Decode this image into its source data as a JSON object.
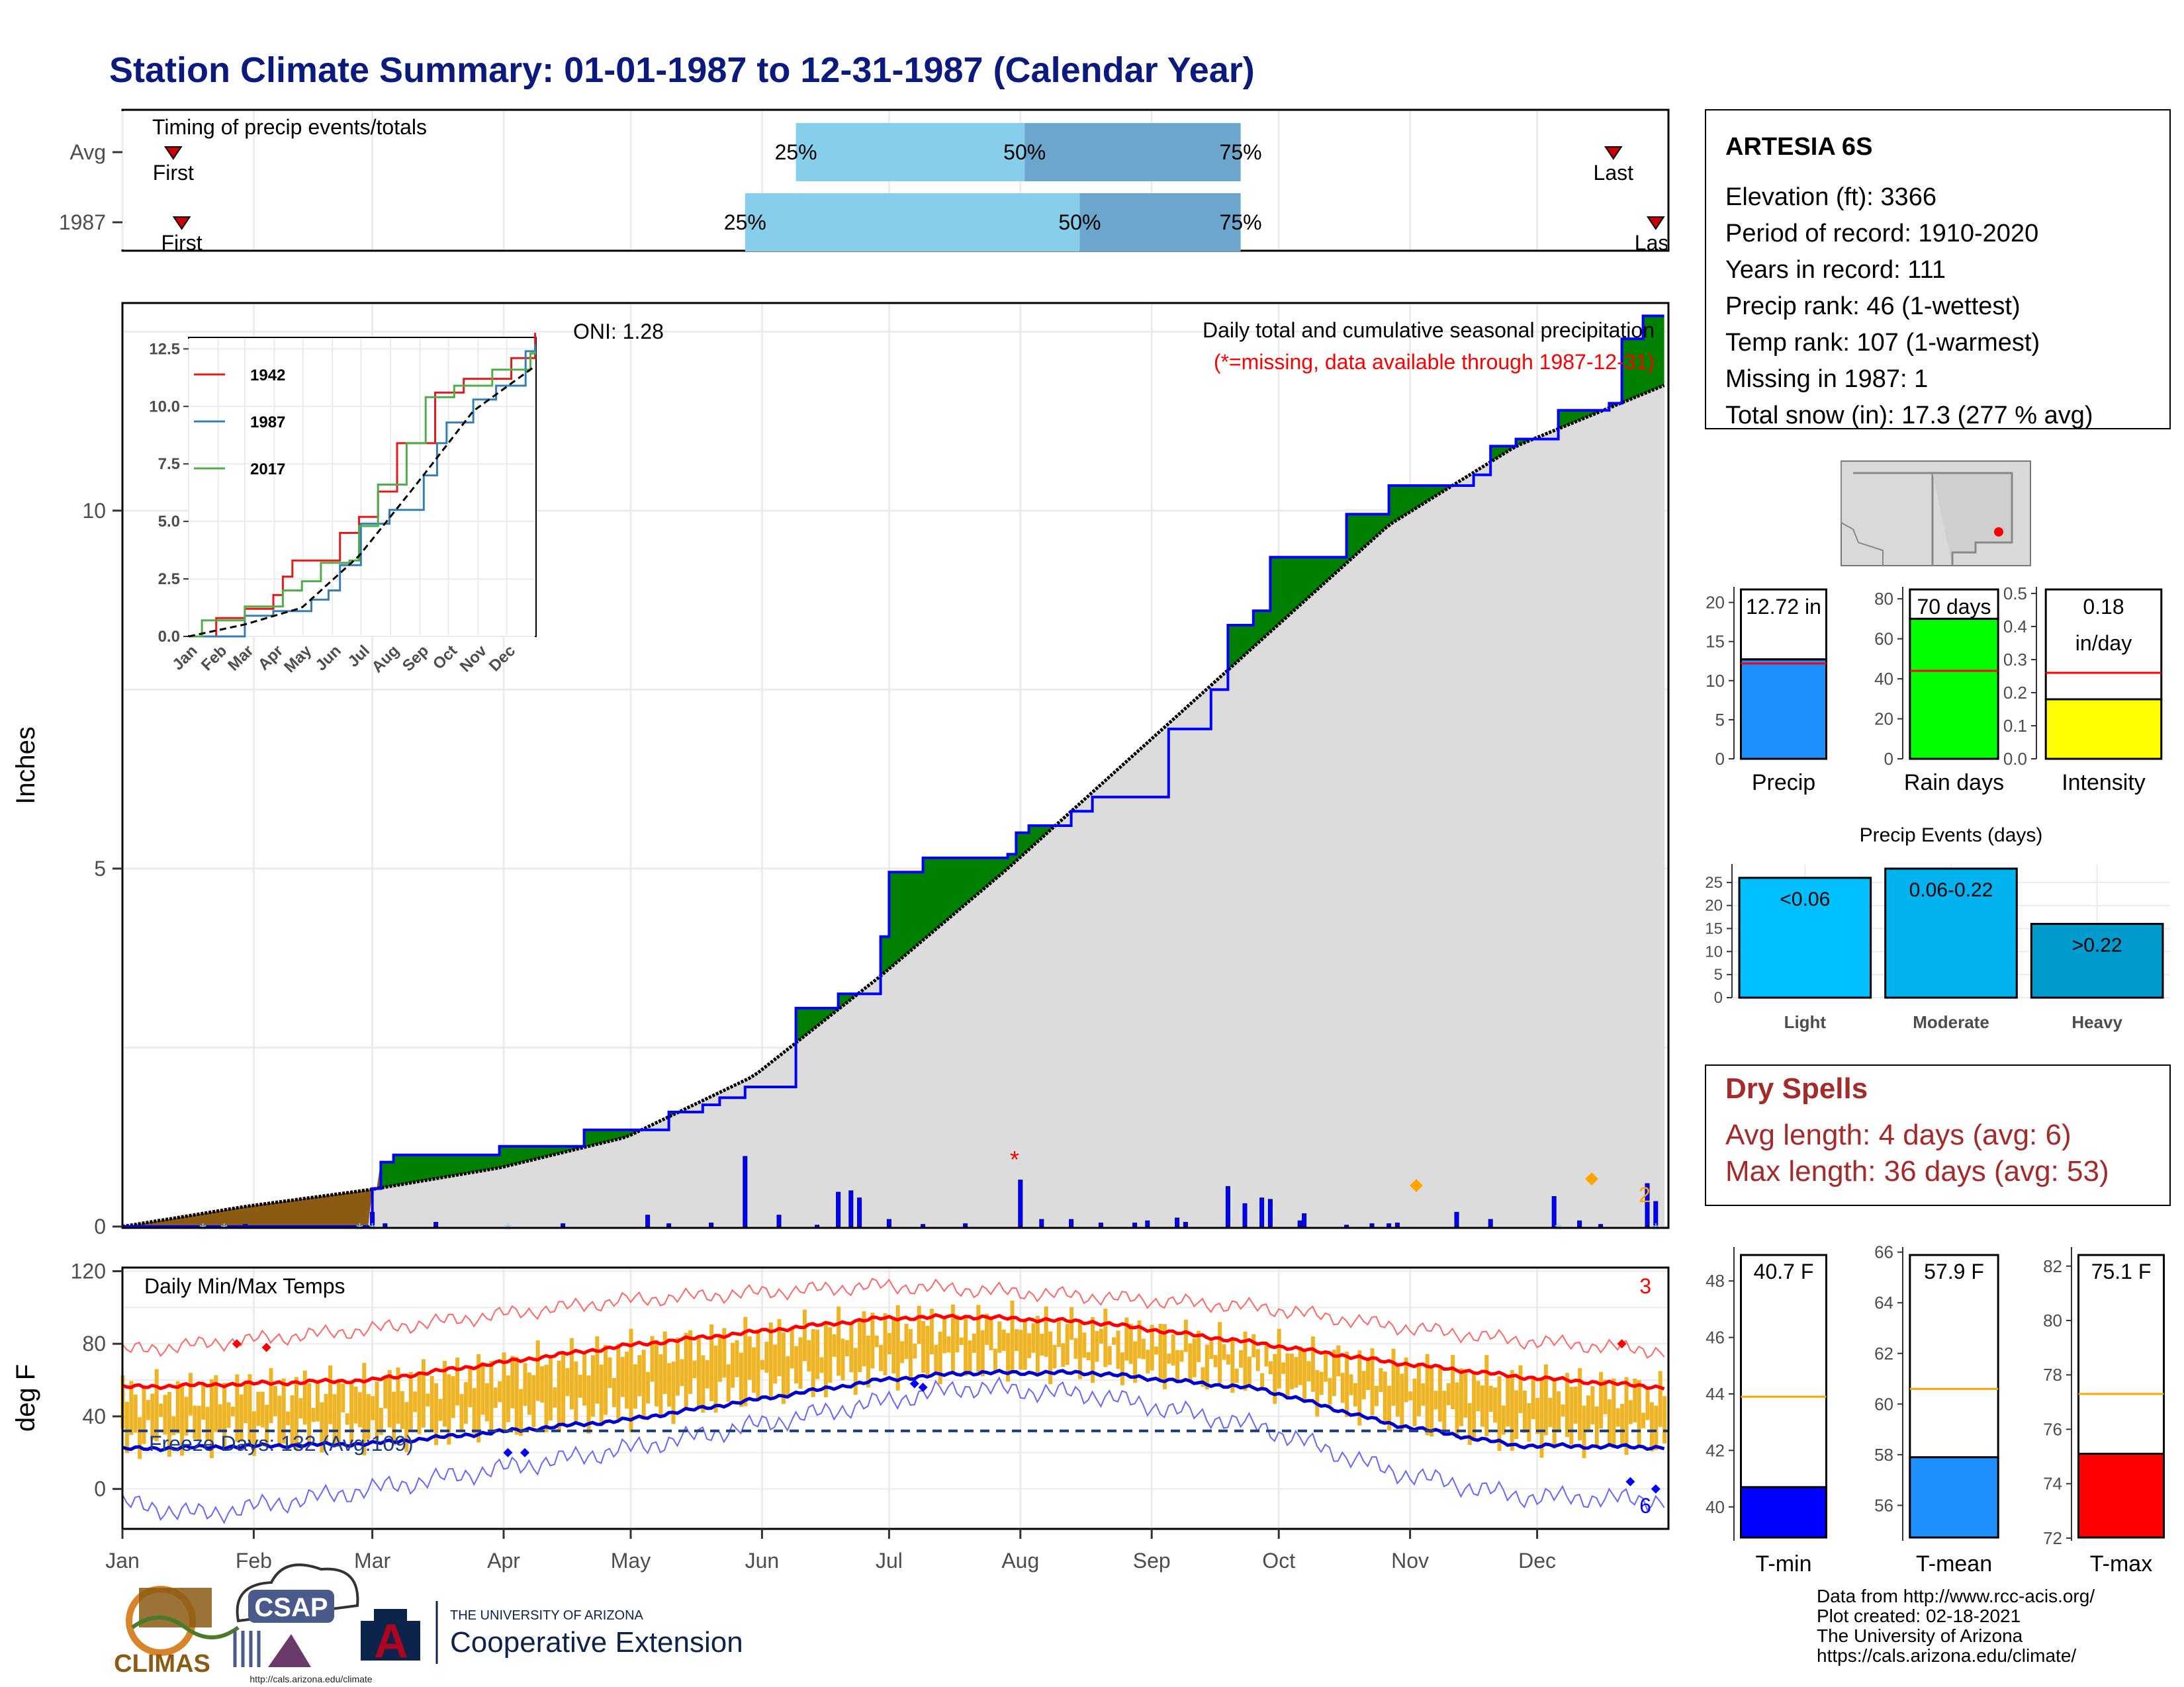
{
  "page_title": "Station Climate Summary: 01-01-1987 to 12-31-1987 (Calendar Year)",
  "colors": {
    "title": "#0b1a7d",
    "precip_obs_fill": "#008000",
    "precip_early_fill": "#8b5a13",
    "precip_avg_fill": "#dcdcdc",
    "daily_bar": "#0000ff",
    "temp_bar": "#efb424",
    "tmax_line": "#ff0000",
    "tmin_line": "#0000cc",
    "dry_spells_text": "#a52a2a",
    "timing_light": "#87ceeb",
    "timing_dark": "#6ca6cd"
  },
  "timing": {
    "title": "Timing of precip events/totals",
    "rows": [
      {
        "label": "Avg",
        "first_label": "First",
        "last_label": "Last",
        "first_day": 13,
        "last_day": 353,
        "q25_day": 160,
        "q50_day": 214,
        "q75_day": 265,
        "q25_label": "25%",
        "q50_label": "50%",
        "q75_label": "75%"
      },
      {
        "label": "1987",
        "first_label": "First",
        "last_label": "Last",
        "first_day": 15,
        "last_day": 363,
        "q25_day": 148,
        "q50_day": 227,
        "q75_day": 265,
        "q25_label": "25%",
        "q50_label": "50%",
        "q75_label": "75%"
      }
    ]
  },
  "station": {
    "name": "ARTESIA 6S",
    "lines": [
      "Elevation (ft): 3366",
      "Period of record: 1910-2020",
      "Years in record: 111",
      "Precip rank: 46 (1-wettest)",
      "Temp rank: 107 (1-warmest)",
      "Missing in 1987: 1",
      "Total snow (in): 17.3 (277 % avg)"
    ]
  },
  "main_panel": {
    "ylabel": "Inches",
    "y_ticks": [
      "0",
      "5",
      "10"
    ],
    "oni_label": "ONI: 1.28",
    "legend_title": "Daily total and cumulative seasonal precipitation",
    "legend_note": "(*=missing, data available through 1987-12-31)",
    "count_label": "2"
  },
  "temp_panel": {
    "ylabel": "deg F",
    "title": "Daily Min/Max Temps",
    "y_ticks": [
      "0",
      "40",
      "80",
      "120"
    ],
    "freeze_label": "Freeze Days: 132 (Avg:109)",
    "count_top": "3",
    "count_bottom": "6"
  },
  "months": [
    "Jan",
    "Feb",
    "Mar",
    "Apr",
    "May",
    "Jun",
    "Jul",
    "Aug",
    "Sep",
    "Oct",
    "Nov",
    "Dec"
  ],
  "inset": {
    "y_ticks": [
      "0.0",
      "2.5",
      "5.0",
      "7.5",
      "10.0",
      "12.5"
    ],
    "legend": [
      {
        "name": "1942",
        "color": "#e41a1c"
      },
      {
        "name": "1987",
        "color": "#377eb8"
      },
      {
        "name": "2017",
        "color": "#4daf4a"
      }
    ]
  },
  "mini_bars": [
    {
      "label": "Precip",
      "value_text": "12.72 in",
      "value": 12.72,
      "avg": 12.2,
      "ymax": 22,
      "ticks": [
        "0",
        "5",
        "10",
        "15",
        "20"
      ],
      "tick_vals": [
        0,
        5,
        10,
        15,
        20
      ],
      "color": "#1e90ff"
    },
    {
      "label": "Rain days",
      "value_text": "70 days",
      "value": 70,
      "avg": 44,
      "ymax": 86,
      "ticks": [
        "0",
        "20",
        "40",
        "60",
        "80"
      ],
      "tick_vals": [
        0,
        20,
        40,
        60,
        80
      ],
      "color": "#00ff00"
    },
    {
      "label": "Intensity",
      "value_text": "0.18",
      "value_text2": "in/day",
      "value": 0.18,
      "avg": 0.26,
      "ymax": 0.52,
      "ticks": [
        "0.0",
        "0.1",
        "0.2",
        "0.3",
        "0.4",
        "0.5"
      ],
      "tick_vals": [
        0,
        0.1,
        0.2,
        0.3,
        0.4,
        0.5
      ],
      "color": "#ffff00"
    }
  ],
  "events": {
    "title": "Precip Events (days)",
    "ticks": [
      "0",
      "5",
      "10",
      "15",
      "20",
      "25"
    ],
    "bars": [
      {
        "label": "Light",
        "range": "<0.06",
        "value": 26,
        "color": "#00bfff"
      },
      {
        "label": "Moderate",
        "range": "0.06-0.22",
        "value": 28,
        "color": "#00b2ee"
      },
      {
        "label": "Heavy",
        "range": ">0.22",
        "value": 16,
        "color": "#009acd"
      }
    ]
  },
  "dry_spells": {
    "title": "Dry Spells",
    "avg_line": "Avg length: 4 days (avg: 6)",
    "max_line": "Max length: 36 days (avg: 53)"
  },
  "temp_bars": [
    {
      "label": "T-min",
      "value_text": "40.7 F",
      "value": 40.7,
      "avg": 43.9,
      "ymin": 38.8,
      "ymax": 49.2,
      "ticks": [
        "40",
        "42",
        "44",
        "46",
        "48"
      ],
      "tick_vals": [
        40,
        42,
        44,
        46,
        48
      ],
      "color": "#0000ff"
    },
    {
      "label": "T-mean",
      "value_text": "57.9 F",
      "value": 57.9,
      "avg": 60.6,
      "ymin": 54.6,
      "ymax": 66.2,
      "ticks": [
        "56",
        "58",
        "60",
        "62",
        "64",
        "66"
      ],
      "tick_vals": [
        56,
        58,
        60,
        62,
        64,
        66
      ],
      "color": "#1e90ff"
    },
    {
      "label": "T-max",
      "value_text": "75.1 F",
      "value": 75.1,
      "avg": 77.3,
      "ymin": 71.9,
      "ymax": 82.7,
      "ticks": [
        "72",
        "74",
        "76",
        "78",
        "80",
        "82"
      ],
      "tick_vals": [
        72,
        74,
        76,
        78,
        80,
        82
      ],
      "color": "#ff0000"
    }
  ],
  "footer": {
    "lines": [
      "Data from http://www.rcc-acis.org/",
      "Plot created: 02-18-2021",
      "The University of Arizona",
      "https://cals.arizona.edu/climate/"
    ],
    "climas_text": "CLIMAS",
    "csap_text": "CSAP",
    "csap_url": "http://cals.arizona.edu/climate",
    "ua_small": "THE UNIVERSITY OF ARIZONA",
    "ua_big": "Cooperative Extension",
    "ua_letter": "A"
  },
  "chart_data": [
    {
      "type": "area",
      "title": "Daily total and cumulative seasonal precipitation",
      "ylabel": "Inches",
      "ylim": [
        0,
        12.9
      ],
      "xlim_days": [
        1,
        365
      ],
      "cumulative_1987": [
        [
          1,
          0
        ],
        [
          60,
          0.53
        ],
        [
          62,
          0.9
        ],
        [
          65,
          1.0
        ],
        [
          78,
          1.0
        ],
        [
          90,
          1.12
        ],
        [
          110,
          1.35
        ],
        [
          130,
          1.6
        ],
        [
          138,
          1.7
        ],
        [
          142,
          1.8
        ],
        [
          148,
          1.95
        ],
        [
          160,
          3.05
        ],
        [
          170,
          3.25
        ],
        [
          180,
          4.05
        ],
        [
          182,
          4.95
        ],
        [
          190,
          5.15
        ],
        [
          210,
          5.2
        ],
        [
          212,
          5.5
        ],
        [
          215,
          5.6
        ],
        [
          225,
          5.8
        ],
        [
          230,
          6.0
        ],
        [
          248,
          6.95
        ],
        [
          258,
          7.5
        ],
        [
          262,
          8.4
        ],
        [
          268,
          8.6
        ],
        [
          272,
          9.35
        ],
        [
          290,
          9.95
        ],
        [
          300,
          10.35
        ],
        [
          320,
          10.5
        ],
        [
          324,
          10.9
        ],
        [
          330,
          11.0
        ],
        [
          340,
          11.4
        ],
        [
          352,
          11.5
        ],
        [
          355,
          12.4
        ],
        [
          360,
          12.72
        ],
        [
          365,
          12.72
        ]
      ],
      "cumulative_avg": [
        [
          1,
          0
        ],
        [
          30,
          0.28
        ],
        [
          60,
          0.52
        ],
        [
          90,
          0.82
        ],
        [
          120,
          1.25
        ],
        [
          150,
          2.1
        ],
        [
          180,
          3.5
        ],
        [
          210,
          5.0
        ],
        [
          240,
          6.6
        ],
        [
          270,
          8.2
        ],
        [
          300,
          9.8
        ],
        [
          330,
          10.9
        ],
        [
          365,
          11.75
        ]
      ],
      "daily_events": [
        [
          30,
          0.03
        ],
        [
          60,
          0.2
        ],
        [
          63,
          0.04
        ],
        [
          75,
          0.06
        ],
        [
          105,
          0.04
        ],
        [
          125,
          0.16
        ],
        [
          130,
          0.04
        ],
        [
          140,
          0.05
        ],
        [
          148,
          0.98
        ],
        [
          156,
          0.16
        ],
        [
          165,
          0.02
        ],
        [
          170,
          0.48
        ],
        [
          173,
          0.5
        ],
        [
          175,
          0.4
        ],
        [
          182,
          0.1
        ],
        [
          190,
          0.03
        ],
        [
          200,
          0.04
        ],
        [
          213,
          0.65
        ],
        [
          218,
          0.1
        ],
        [
          225,
          0.1
        ],
        [
          232,
          0.05
        ],
        [
          240,
          0.05
        ],
        [
          243,
          0.08
        ],
        [
          250,
          0.12
        ],
        [
          252,
          0.06
        ],
        [
          262,
          0.56
        ],
        [
          266,
          0.32
        ],
        [
          270,
          0.4
        ],
        [
          272,
          0.38
        ],
        [
          279,
          0.08
        ],
        [
          280,
          0.18
        ],
        [
          290,
          0.02
        ],
        [
          296,
          0.04
        ],
        [
          300,
          0.04
        ],
        [
          302,
          0.05
        ],
        [
          316,
          0.2
        ],
        [
          324,
          0.1
        ],
        [
          339,
          0.42
        ],
        [
          345,
          0.08
        ],
        [
          350,
          0.03
        ],
        [
          361,
          0.6
        ],
        [
          363,
          0.35
        ]
      ]
    },
    {
      "type": "line",
      "title": "Daily Min/Max Temps",
      "ylabel": "deg F",
      "ylim": [
        -22,
        122
      ],
      "series": [
        {
          "name": "avg_max",
          "values": [
            [
              1,
              56
            ],
            [
              60,
              60
            ],
            [
              120,
              79
            ],
            [
              180,
              94
            ],
            [
              200,
              95
            ],
            [
              230,
              92
            ],
            [
              270,
              80
            ],
            [
              300,
              70
            ],
            [
              330,
              62
            ],
            [
              365,
              56
            ]
          ]
        },
        {
          "name": "avg_min",
          "values": [
            [
              1,
              22
            ],
            [
              60,
              25
            ],
            [
              120,
              38
            ],
            [
              180,
              60
            ],
            [
              200,
              64
            ],
            [
              230,
              64
            ],
            [
              270,
              55
            ],
            [
              300,
              36
            ],
            [
              330,
              24
            ],
            [
              365,
              23
            ]
          ]
        },
        {
          "name": "record_max",
          "values": [
            [
              1,
              76
            ],
            [
              60,
              88
            ],
            [
              120,
              104
            ],
            [
              180,
              112
            ],
            [
              200,
              110
            ],
            [
              230,
              106
            ],
            [
              270,
              100
            ],
            [
              300,
              90
            ],
            [
              330,
              82
            ],
            [
              365,
              76
            ]
          ]
        },
        {
          "name": "record_min",
          "values": [
            [
              1,
              -8
            ],
            [
              20,
              -14
            ],
            [
              60,
              0
            ],
            [
              120,
              22
            ],
            [
              180,
              48
            ],
            [
              200,
              56
            ],
            [
              230,
              52
            ],
            [
              270,
              34
            ],
            [
              300,
              10
            ],
            [
              330,
              -4
            ],
            [
              365,
              -6
            ]
          ]
        }
      ],
      "freeze_threshold": 32
    },
    {
      "type": "line",
      "title": "",
      "xlabel": "",
      "ylabel": "",
      "ylim": [
        0,
        13
      ],
      "series": [
        {
          "name": "1942",
          "values": [
            [
              1,
              0
            ],
            [
              30,
              0.8
            ],
            [
              60,
              1.2
            ],
            [
              90,
              1.8
            ],
            [
              100,
              2.6
            ],
            [
              110,
              3.3
            ],
            [
              150,
              3.3
            ],
            [
              160,
              4.5
            ],
            [
              180,
              5.2
            ],
            [
              200,
              6.3
            ],
            [
              220,
              8.4
            ],
            [
              260,
              10.6
            ],
            [
              290,
              11.2
            ],
            [
              340,
              12.1
            ],
            [
              365,
              13.2
            ]
          ]
        },
        {
          "name": "1987",
          "values": [
            [
              1,
              0
            ],
            [
              60,
              0.9
            ],
            [
              90,
              1.1
            ],
            [
              130,
              1.6
            ],
            [
              148,
              2.0
            ],
            [
              160,
              3.1
            ],
            [
              182,
              4.9
            ],
            [
              212,
              5.5
            ],
            [
              248,
              7.0
            ],
            [
              262,
              8.4
            ],
            [
              272,
              9.3
            ],
            [
              300,
              10.3
            ],
            [
              324,
              10.9
            ],
            [
              355,
              12.4
            ],
            [
              365,
              12.7
            ]
          ]
        },
        {
          "name": "2017",
          "values": [
            [
              1,
              0
            ],
            [
              15,
              0.7
            ],
            [
              60,
              1.3
            ],
            [
              100,
              2.0
            ],
            [
              120,
              2.4
            ],
            [
              140,
              3.2
            ],
            [
              170,
              3.3
            ],
            [
              180,
              4.8
            ],
            [
              200,
              6.6
            ],
            [
              230,
              8.4
            ],
            [
              250,
              10.4
            ],
            [
              280,
              10.9
            ],
            [
              320,
              11.6
            ],
            [
              360,
              12.3
            ],
            [
              365,
              12.4
            ]
          ]
        },
        {
          "name": "average",
          "values": [
            [
              1,
              0
            ],
            [
              60,
              0.52
            ],
            [
              120,
              1.25
            ],
            [
              180,
              3.5
            ],
            [
              240,
              6.6
            ],
            [
              300,
              9.8
            ],
            [
              365,
              11.75
            ]
          ]
        }
      ]
    }
  ]
}
